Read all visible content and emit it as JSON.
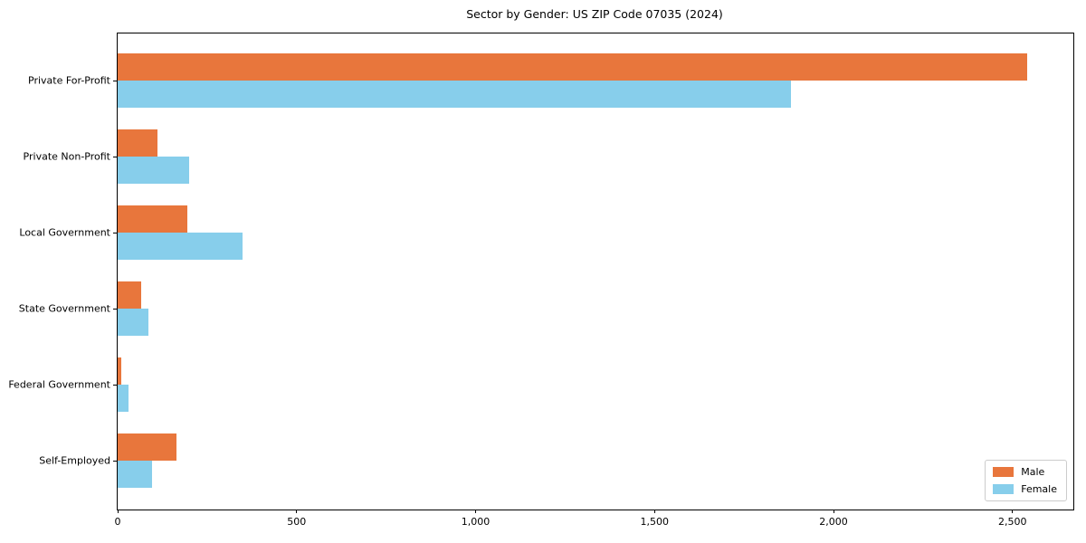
{
  "chart_data": {
    "type": "bar",
    "orientation": "horizontal",
    "title": "Sector by Gender: US ZIP Code 07035 (2024)",
    "categories": [
      "Private For-Profit",
      "Private Non-Profit",
      "Local Government",
      "State Government",
      "Federal Government",
      "Self-Employed"
    ],
    "series": [
      {
        "name": "Male",
        "color": "#e8763c",
        "values": [
          2540,
          110,
          195,
          65,
          10,
          165
        ]
      },
      {
        "name": "Female",
        "color": "#87ceeb",
        "values": [
          1880,
          200,
          350,
          85,
          30,
          95
        ]
      }
    ],
    "xlabel": "",
    "ylabel": "",
    "xlim": [
      0,
      2670
    ],
    "xticks": [
      0,
      500,
      1000,
      1500,
      2000,
      2500
    ],
    "xtick_labels": [
      "0",
      "500",
      "1,000",
      "1,500",
      "2,000",
      "2,500"
    ],
    "grid": false,
    "legend_position": "lower right",
    "legend_entries": [
      "Male",
      "Female"
    ]
  }
}
